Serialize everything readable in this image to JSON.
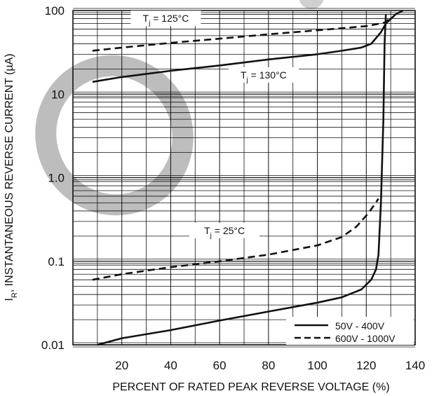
{
  "chart_data": {
    "type": "line",
    "title": "",
    "xlabel": "PERCENT OF RATED PEAK  REVERSE VOLTAGE (%)",
    "ylabel_main": "I",
    "ylabel_sub": "R",
    "ylabel_rest": ", INSTANTANEOUS REVERSE CURRENT (µA)",
    "xlim": [
      0,
      140
    ],
    "ylim": [
      0.01,
      100
    ],
    "y_scale": "log",
    "grid": "log-minor horizontal, major vertical",
    "x_ticks": [
      {
        "value": 20,
        "label": "20"
      },
      {
        "value": 40,
        "label": "40"
      },
      {
        "value": 60,
        "label": "60"
      },
      {
        "value": 80,
        "label": "80"
      },
      {
        "value": 100,
        "label": "100"
      },
      {
        "value": 120,
        "label": "120"
      },
      {
        "value": 140,
        "label": "140"
      }
    ],
    "y_ticks": [
      {
        "value": 100,
        "label": "100"
      },
      {
        "value": 10,
        "label": "10"
      },
      {
        "value": 1,
        "label": "1.0"
      },
      {
        "value": 0.1,
        "label": "0.1"
      },
      {
        "value": 0.01,
        "label": "0.01"
      }
    ],
    "annotations": [
      {
        "id": "tj125",
        "main": "T",
        "sub": "j",
        "rest": " = 125°C",
        "x": 38,
        "y": 76
      },
      {
        "id": "tj130",
        "main": "T",
        "sub": "j",
        "rest": " = 130°C",
        "x": 78,
        "y": 16
      },
      {
        "id": "tj25",
        "main": "T",
        "sub": "j",
        "rest": " = 25°C",
        "x": 62,
        "y": 0.22
      }
    ],
    "legend_position": "bottom-right",
    "legend": [
      {
        "label": "50V - 400V",
        "style": "solid"
      },
      {
        "label": "600V - 1000V",
        "style": "dashed"
      }
    ],
    "series": [
      {
        "temperature": "125°C",
        "style": "dashed",
        "points": [
          [
            8,
            33
          ],
          [
            20,
            36
          ],
          [
            40,
            41
          ],
          [
            60,
            46
          ],
          [
            80,
            52
          ],
          [
            100,
            58
          ],
          [
            120,
            65
          ],
          [
            128,
            72
          ],
          [
            129,
            78
          ]
        ]
      },
      {
        "temperature": "130°C",
        "style": "solid",
        "points": [
          [
            8,
            14
          ],
          [
            20,
            16
          ],
          [
            40,
            19
          ],
          [
            60,
            22
          ],
          [
            80,
            26
          ],
          [
            100,
            30
          ],
          [
            110,
            33
          ],
          [
            118,
            36
          ],
          [
            122,
            40
          ],
          [
            126,
            55
          ],
          [
            128,
            70
          ],
          [
            132,
            90
          ],
          [
            135,
            100
          ]
        ]
      },
      {
        "temperature": "25°C",
        "style": "dashed",
        "points": [
          [
            8,
            0.06
          ],
          [
            20,
            0.07
          ],
          [
            40,
            0.085
          ],
          [
            60,
            0.1
          ],
          [
            80,
            0.12
          ],
          [
            100,
            0.155
          ],
          [
            110,
            0.195
          ],
          [
            116,
            0.26
          ],
          [
            121,
            0.38
          ],
          [
            125,
            0.56
          ]
        ]
      },
      {
        "temperature": "25°C",
        "style": "solid",
        "points": [
          [
            10,
            0.01
          ],
          [
            20,
            0.012
          ],
          [
            40,
            0.015
          ],
          [
            60,
            0.0195
          ],
          [
            80,
            0.025
          ],
          [
            100,
            0.032
          ],
          [
            110,
            0.037
          ],
          [
            118,
            0.046
          ],
          [
            122,
            0.06
          ],
          [
            124,
            0.08
          ],
          [
            125,
            0.12
          ],
          [
            126,
            0.5
          ],
          [
            127,
            5
          ],
          [
            127.5,
            40
          ],
          [
            128,
            90
          ]
        ]
      }
    ]
  }
}
